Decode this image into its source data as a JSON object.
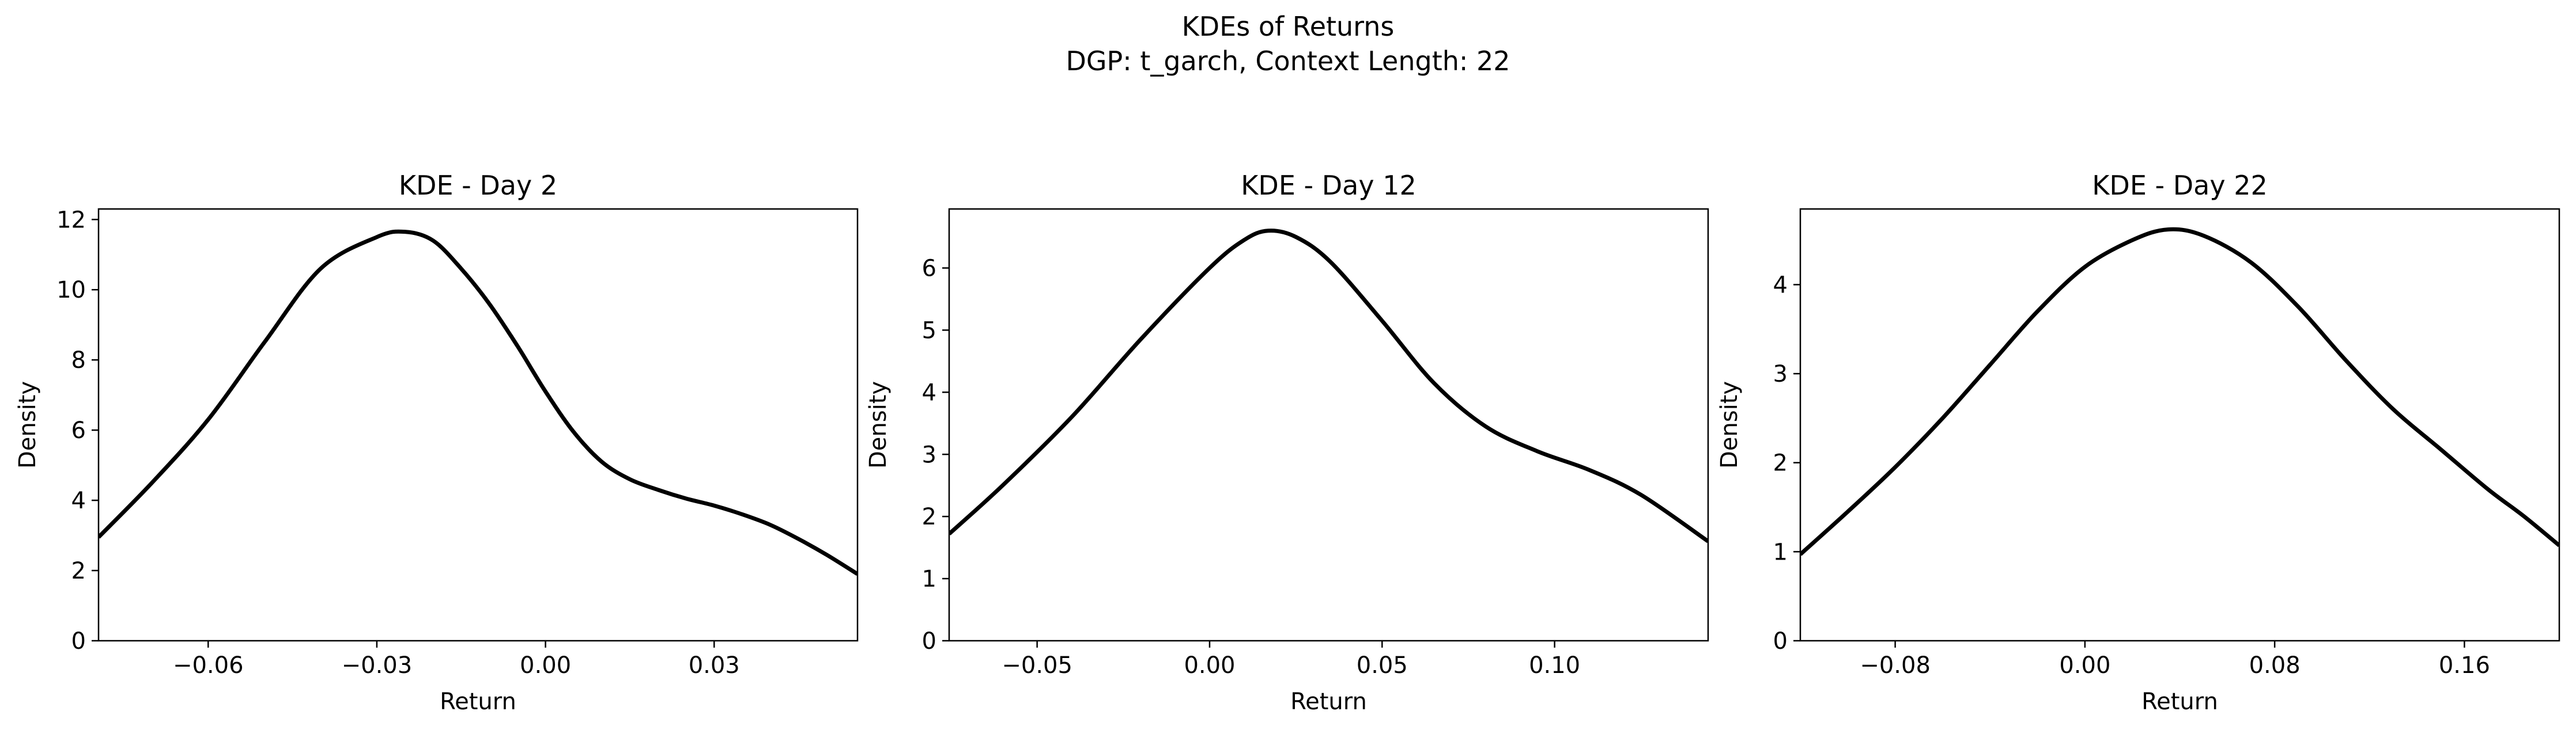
{
  "figure": {
    "title": "KDEs of Returns",
    "subtitle": "DGP: t_garch, Context Length: 22"
  },
  "chart_data": [
    {
      "type": "line",
      "title": "KDE - Day 2",
      "xlabel": "Return",
      "ylabel": "Density",
      "xlim": [
        -0.0795,
        0.0555
      ],
      "ylim": [
        0,
        12.3
      ],
      "xticks": [
        -0.06,
        -0.03,
        0.0,
        0.03
      ],
      "xtick_labels": [
        "−0.06",
        "−0.03",
        "0.00",
        "0.03"
      ],
      "yticks": [
        0,
        2,
        4,
        6,
        8,
        10,
        12
      ],
      "ytick_labels": [
        "0",
        "2",
        "4",
        "6",
        "8",
        "10",
        "12"
      ],
      "grid": false,
      "line_color": "#000000",
      "series": [
        {
          "x": [
            -0.0795,
            -0.07,
            -0.06,
            -0.05,
            -0.04,
            -0.03,
            -0.025,
            -0.02,
            -0.015,
            -0.01,
            -0.005,
            0.0,
            0.005,
            0.01,
            0.015,
            0.02,
            0.025,
            0.03,
            0.035,
            0.04,
            0.045,
            0.05,
            0.0555
          ],
          "y": [
            2.95,
            4.5,
            6.3,
            8.5,
            10.6,
            11.5,
            11.65,
            11.4,
            10.6,
            9.6,
            8.4,
            7.1,
            5.95,
            5.1,
            4.6,
            4.3,
            4.05,
            3.85,
            3.6,
            3.3,
            2.9,
            2.45,
            1.9
          ]
        }
      ]
    },
    {
      "type": "line",
      "title": "KDE - Day 12",
      "xlabel": "Return",
      "ylabel": "Density",
      "xlim": [
        -0.0755,
        0.1445
      ],
      "ylim": [
        0,
        6.95
      ],
      "xticks": [
        -0.05,
        0.0,
        0.05,
        0.1
      ],
      "xtick_labels": [
        "−0.05",
        "0.00",
        "0.05",
        "0.10"
      ],
      "yticks": [
        0,
        1,
        2,
        3,
        4,
        5,
        6
      ],
      "ytick_labels": [
        "0",
        "1",
        "2",
        "3",
        "4",
        "5",
        "6"
      ],
      "grid": false,
      "line_color": "#000000",
      "series": [
        {
          "x": [
            -0.0755,
            -0.06,
            -0.04,
            -0.02,
            0.0,
            0.01,
            0.017,
            0.025,
            0.035,
            0.05,
            0.065,
            0.08,
            0.095,
            0.11,
            0.125,
            0.1445
          ],
          "y": [
            1.72,
            2.5,
            3.6,
            4.85,
            6.0,
            6.45,
            6.6,
            6.5,
            6.1,
            5.15,
            4.15,
            3.45,
            3.05,
            2.75,
            2.35,
            1.6
          ]
        }
      ]
    },
    {
      "type": "line",
      "title": "KDE - Day 22",
      "xlabel": "Return",
      "ylabel": "Density",
      "xlim": [
        -0.12,
        0.2
      ],
      "ylim": [
        0,
        4.85
      ],
      "xticks": [
        -0.08,
        0.0,
        0.08,
        0.16
      ],
      "xtick_labels": [
        "−0.08",
        "0.00",
        "0.08",
        "0.16"
      ],
      "yticks": [
        0,
        1,
        2,
        3,
        4
      ],
      "ytick_labels": [
        "0",
        "1",
        "2",
        "3",
        "4"
      ],
      "grid": false,
      "line_color": "#000000",
      "series": [
        {
          "x": [
            -0.12,
            -0.1,
            -0.08,
            -0.06,
            -0.04,
            -0.02,
            0.0,
            0.02,
            0.035,
            0.05,
            0.07,
            0.09,
            0.11,
            0.13,
            0.15,
            0.17,
            0.185,
            0.2
          ],
          "y": [
            0.97,
            1.45,
            1.95,
            2.5,
            3.1,
            3.7,
            4.2,
            4.5,
            4.62,
            4.55,
            4.25,
            3.75,
            3.15,
            2.6,
            2.15,
            1.7,
            1.4,
            1.07
          ]
        }
      ]
    }
  ]
}
